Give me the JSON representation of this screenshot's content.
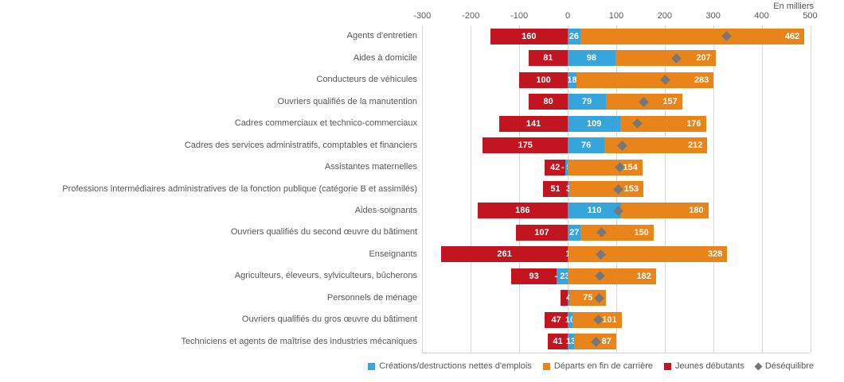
{
  "header": {
    "units_label": "En milliers"
  },
  "colors": {
    "creations_blue": "#36A5DC",
    "departs_orange": "#E8841A",
    "jeunes_red": "#C2151F",
    "desequilibre_gray": "#777777",
    "gridline": "#D9D9D9",
    "axis_text": "#595959"
  },
  "chart_data": {
    "type": "bar",
    "subtype": "horizontal-diverging-stacked",
    "title": "",
    "xlabel": "En milliers",
    "ylabel": "",
    "xlim": [
      -300,
      500
    ],
    "x_ticks": [
      -300,
      -200,
      -100,
      0,
      100,
      200,
      300,
      400,
      500
    ],
    "grid": true,
    "legend_position": "bottom",
    "series_meta": [
      {
        "key": "creations",
        "name": "Créations/destructions nettes d'emplois",
        "color": "#36A5DC",
        "marker": "square"
      },
      {
        "key": "departs",
        "name": "Départs en fin de carrière",
        "color": "#E8841A",
        "marker": "square"
      },
      {
        "key": "jeunes",
        "name": "Jeunes débutants",
        "color": "#C2151F",
        "marker": "square",
        "note": "plotted on negative side"
      },
      {
        "key": "desequilibre",
        "name": "Déséquilibre",
        "color": "#777777",
        "marker": "diamond"
      }
    ],
    "rows": [
      {
        "label": "Agents d'entretien",
        "jeunes": 160,
        "creations": 26,
        "departs": 462,
        "desequilibre": 328,
        "labels": {
          "jeunes": "160",
          "creations": "26",
          "departs": "462"
        }
      },
      {
        "label": "Aides à domicile",
        "jeunes": 81,
        "creations": 98,
        "departs": 207,
        "desequilibre": 224,
        "labels": {
          "jeunes": "81",
          "creations": "98",
          "departs": "207"
        }
      },
      {
        "label": "Conducteurs de véhicules",
        "jeunes": 100,
        "creations": 18,
        "departs": 283,
        "desequilibre": 201,
        "labels": {
          "jeunes": "100",
          "creations": "18",
          "departs": "283"
        }
      },
      {
        "label": "Ouvriers qualifiés de la manutention",
        "jeunes": 80,
        "creations": 79,
        "departs": 157,
        "desequilibre": 156,
        "labels": {
          "jeunes": "80",
          "creations": "79",
          "departs": "157"
        }
      },
      {
        "label": "Cadres commerciaux et technico-commerciaux",
        "jeunes": 141,
        "creations": 109,
        "departs": 176,
        "desequilibre": 144,
        "labels": {
          "jeunes": "141",
          "creations": "109",
          "departs": "176"
        }
      },
      {
        "label": "Cadres des services administratifs, comptables et financiers",
        "jeunes": 175,
        "creations": 76,
        "departs": 212,
        "desequilibre": 113,
        "labels": {
          "jeunes": "175",
          "creations": "76",
          "departs": "212"
        }
      },
      {
        "label": "Assistantes maternelles",
        "jeunes": 42,
        "creations": -5,
        "departs": 154,
        "desequilibre": 107,
        "labels": {
          "jeunes": "42",
          "creations": "- 5",
          "departs": "154"
        }
      },
      {
        "label": "Professions intermédiaires administratives de la fonction publique (catégorie B et assimilés)",
        "jeunes": 51,
        "creations": 3,
        "departs": 153,
        "desequilibre": 105,
        "labels": {
          "jeunes": "51",
          "creations": "3",
          "departs": "153"
        }
      },
      {
        "label": "Aides-soignants",
        "jeunes": 186,
        "creations": 110,
        "departs": 180,
        "desequilibre": 104,
        "labels": {
          "jeunes": "186",
          "creations": "110",
          "departs": "180"
        }
      },
      {
        "label": "Ouvriers qualifiés du second œuvre du bâtiment",
        "jeunes": 107,
        "creations": 27,
        "departs": 150,
        "desequilibre": 70,
        "labels": {
          "jeunes": "107",
          "creations": "27",
          "departs": "150"
        }
      },
      {
        "label": "Enseignants",
        "jeunes": 261,
        "creations": 1,
        "departs": 328,
        "desequilibre": 68,
        "labels": {
          "jeunes": "261",
          "creations": "1",
          "departs": "328"
        }
      },
      {
        "label": "Agriculteurs, éleveurs, sylviculteurs, bûcherons",
        "jeunes": 93,
        "creations": -23,
        "departs": 182,
        "desequilibre": 66,
        "labels": {
          "jeunes": "93",
          "creations": "- 23",
          "departs": "182"
        }
      },
      {
        "label": "Personnels de ménage",
        "jeunes": 14,
        "creations": 4,
        "departs": 75,
        "desequilibre": 65,
        "labels": {
          "jeunes": "",
          "creations": "4",
          "departs": "75"
        }
      },
      {
        "label": "Ouvriers qualifiés du gros œuvre du bâtiment",
        "jeunes": 47,
        "creations": 10,
        "departs": 101,
        "desequilibre": 64,
        "labels": {
          "jeunes": "47",
          "creations": "10",
          "departs": "101"
        }
      },
      {
        "label": "Techniciens et agents de maîtrise des industries mécaniques",
        "jeunes": 41,
        "creations": 13,
        "departs": 87,
        "desequilibre": 59,
        "labels": {
          "jeunes": "41",
          "creations": "13",
          "departs": "87"
        }
      }
    ]
  }
}
